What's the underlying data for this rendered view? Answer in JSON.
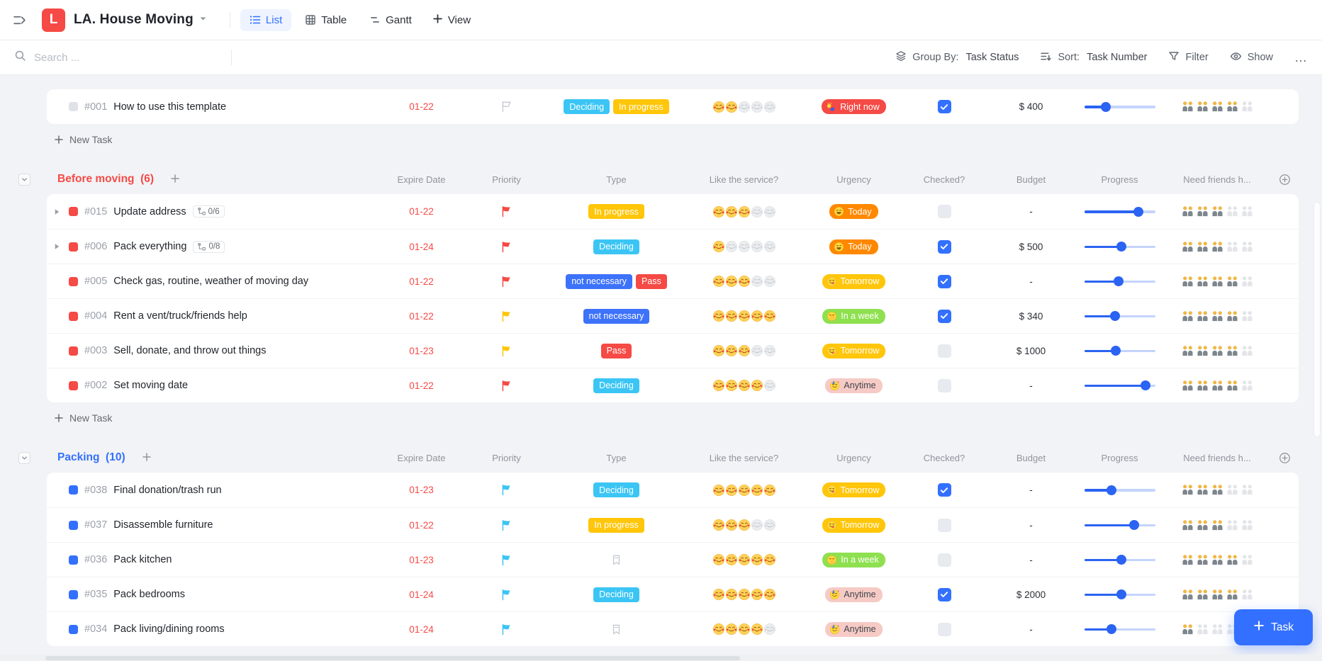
{
  "header": {
    "logo_letter": "L",
    "title": "LA. House Moving",
    "tabs": [
      {
        "label": "List",
        "active": true
      },
      {
        "label": "Table",
        "active": false
      },
      {
        "label": "Gantt",
        "active": false
      }
    ],
    "view_label": "View"
  },
  "toolbar": {
    "search_placeholder": "Search ...",
    "group_by_label": "Group By:",
    "group_by_value": "Task Status",
    "sort_label": "Sort:",
    "sort_value": "Task Number",
    "filter_label": "Filter",
    "show_label": "Show",
    "more_label": "…"
  },
  "columns": [
    "Expire Date",
    "Priority",
    "Type",
    "Like the service?",
    "Urgency",
    "Checked?",
    "Budget",
    "Progress",
    "Need friends h..."
  ],
  "new_task_label": "New Task",
  "add_task_label": "Task",
  "colors": {
    "accent_blue": "#3370ff",
    "red": "#f54a45",
    "yellow": "#ffc60a",
    "cyan": "#3bc5f4",
    "orange": "#ff8800",
    "green": "#8ee04f",
    "pink": "#f6cac5",
    "date_red": "#f54a45"
  },
  "groups": [
    {
      "title": null,
      "show_columns": false,
      "show_new_task": true,
      "rows": [
        {
          "id": "#001",
          "title": "How to use this template",
          "bullet": "#dfe3e8",
          "expandable": false,
          "subtasks": null,
          "expire": "01-22",
          "flag": null,
          "type_tags": [
            {
              "label": "Deciding",
              "bg": "#3bc5f4"
            },
            {
              "label": "In progress",
              "bg": "#ffc60a"
            }
          ],
          "like": 2,
          "urgency": {
            "label": "Right now",
            "bg": "#f54a45",
            "fg": "#ffffff",
            "icon": "person-bowing-icon"
          },
          "checked": true,
          "budget": "$ 400",
          "progress": 30,
          "friends": 4
        }
      ]
    },
    {
      "title": "Before moving",
      "count": 6,
      "color": "#f54a45",
      "show_columns": true,
      "show_new_task": true,
      "rows": [
        {
          "id": "#015",
          "title": "Update address",
          "bullet": "#f54a45",
          "expandable": true,
          "subtasks": "0/6",
          "expire": "01-22",
          "flag": "#f54a45",
          "type_tags": [
            {
              "label": "In progress",
              "bg": "#ffc60a"
            }
          ],
          "like": 3,
          "urgency": {
            "label": "Today",
            "bg": "#ff8800",
            "fg": "#ffffff",
            "icon": "grinning-face-icon"
          },
          "checked": false,
          "budget": "-",
          "progress": 76,
          "friends": 3
        },
        {
          "id": "#006",
          "title": "Pack everything",
          "bullet": "#f54a45",
          "expandable": true,
          "subtasks": "0/8",
          "expire": "01-24",
          "flag": "#f54a45",
          "type_tags": [
            {
              "label": "Deciding",
              "bg": "#3bc5f4"
            }
          ],
          "like": 1,
          "urgency": {
            "label": "Today",
            "bg": "#ff8800",
            "fg": "#ffffff",
            "icon": "grinning-face-icon"
          },
          "checked": true,
          "budget": "$ 500",
          "progress": 52,
          "friends": 3
        },
        {
          "id": "#005",
          "title": "Check gas, routine, weather of moving day",
          "bullet": "#f54a45",
          "expandable": false,
          "subtasks": null,
          "expire": "01-22",
          "flag": "#f54a45",
          "type_tags": [
            {
              "label": "not necessary",
              "bg": "#3d72fa"
            },
            {
              "label": "Pass",
              "bg": "#f54a45"
            }
          ],
          "like": 3,
          "urgency": {
            "label": "Tomorrow",
            "bg": "#ffc60a",
            "fg": "#ffffff",
            "icon": "yum-face-icon"
          },
          "checked": true,
          "budget": "-",
          "progress": 48,
          "friends": 4
        },
        {
          "id": "#004",
          "title": "Rent a vent/truck/friends help",
          "bullet": "#f54a45",
          "expandable": false,
          "subtasks": null,
          "expire": "01-22",
          "flag": "#ffc60a",
          "type_tags": [
            {
              "label": "not necessary",
              "bg": "#3d72fa"
            }
          ],
          "like": 5,
          "urgency": {
            "label": "In a week",
            "bg": "#8ee04f",
            "fg": "#ffffff",
            "icon": "hand-over-mouth-face-icon"
          },
          "checked": true,
          "budget": "$ 340",
          "progress": 43,
          "friends": 4
        },
        {
          "id": "#003",
          "title": "Sell, donate, and throw out things",
          "bullet": "#f54a45",
          "expandable": false,
          "subtasks": null,
          "expire": "01-23",
          "flag": "#ffc60a",
          "type_tags": [
            {
              "label": "Pass",
              "bg": "#f54a45"
            }
          ],
          "like": 3,
          "urgency": {
            "label": "Tomorrow",
            "bg": "#ffc60a",
            "fg": "#ffffff",
            "icon": "yum-face-icon"
          },
          "checked": false,
          "budget": "$ 1000",
          "progress": 44,
          "friends": 4
        },
        {
          "id": "#002",
          "title": "Set moving date",
          "bullet": "#f54a45",
          "expandable": false,
          "subtasks": null,
          "expire": "01-22",
          "flag": "#f54a45",
          "type_tags": [
            {
              "label": "Deciding",
              "bg": "#3bc5f4"
            }
          ],
          "like": 4,
          "urgency": {
            "label": "Anytime",
            "bg": "#f6cac5",
            "fg": "#41464e",
            "icon": "partying-face-icon"
          },
          "checked": false,
          "budget": "-",
          "progress": 86,
          "friends": 4
        }
      ]
    },
    {
      "title": "Packing",
      "count": 10,
      "color": "#3370ff",
      "show_columns": true,
      "show_new_task": false,
      "rows": [
        {
          "id": "#038",
          "title": "Final donation/trash run",
          "bullet": "#3370ff",
          "expandable": false,
          "subtasks": null,
          "expire": "01-23",
          "flag": "#3bc5f4",
          "type_tags": [
            {
              "label": "Deciding",
              "bg": "#3bc5f4"
            }
          ],
          "like": 5,
          "urgency": {
            "label": "Tomorrow",
            "bg": "#ffc60a",
            "fg": "#ffffff",
            "icon": "yum-face-icon"
          },
          "checked": true,
          "budget": "-",
          "progress": 38,
          "friends": 3
        },
        {
          "id": "#037",
          "title": "Disassemble furniture",
          "bullet": "#3370ff",
          "expandable": false,
          "subtasks": null,
          "expire": "01-22",
          "flag": "#3bc5f4",
          "type_tags": [
            {
              "label": "In progress",
              "bg": "#ffc60a"
            }
          ],
          "like": 3,
          "urgency": {
            "label": "Tomorrow",
            "bg": "#ffc60a",
            "fg": "#ffffff",
            "icon": "yum-face-icon"
          },
          "checked": false,
          "budget": "-",
          "progress": 70,
          "friends": 3
        },
        {
          "id": "#036",
          "title": "Pack kitchen",
          "bullet": "#3370ff",
          "expandable": false,
          "subtasks": null,
          "expire": "01-23",
          "flag": "#3bc5f4",
          "type_tags": [],
          "like": 5,
          "urgency": {
            "label": "In a week",
            "bg": "#8ee04f",
            "fg": "#ffffff",
            "icon": "hand-over-mouth-face-icon"
          },
          "checked": false,
          "budget": "-",
          "progress": 52,
          "friends": 4
        },
        {
          "id": "#035",
          "title": "Pack bedrooms",
          "bullet": "#3370ff",
          "expandable": false,
          "subtasks": null,
          "expire": "01-24",
          "flag": "#3bc5f4",
          "type_tags": [
            {
              "label": "Deciding",
              "bg": "#3bc5f4"
            }
          ],
          "like": 5,
          "urgency": {
            "label": "Anytime",
            "bg": "#f6cac5",
            "fg": "#41464e",
            "icon": "partying-face-icon"
          },
          "checked": true,
          "budget": "$ 2000",
          "progress": 52,
          "friends": 4
        },
        {
          "id": "#034",
          "title": "Pack living/dining rooms",
          "bullet": "#3370ff",
          "expandable": false,
          "subtasks": null,
          "expire": "01-24",
          "flag": "#3bc5f4",
          "type_tags": [],
          "like": 4,
          "urgency": {
            "label": "Anytime",
            "bg": "#f6cac5",
            "fg": "#41464e",
            "icon": "partying-face-icon"
          },
          "checked": false,
          "budget": "-",
          "progress": 38,
          "friends": 1
        }
      ]
    }
  ]
}
